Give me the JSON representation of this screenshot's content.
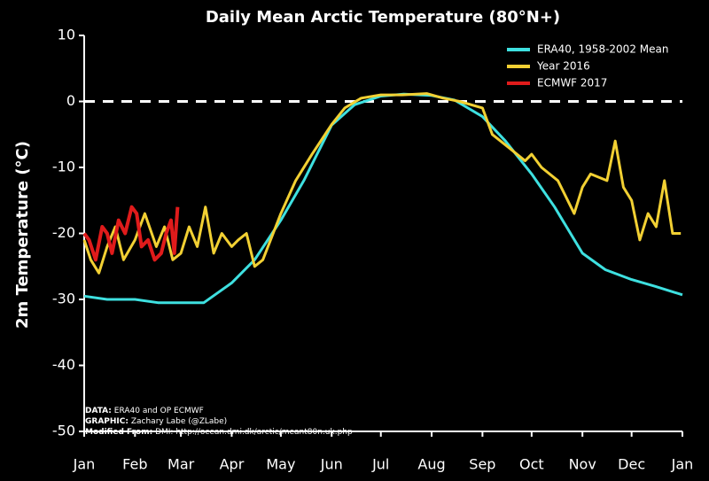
{
  "chart_data": {
    "type": "line",
    "title": "Daily Mean Arctic Temperature (80°N+)",
    "y_label": "2m Temperature (°C)",
    "xlim": [
      1,
      366
    ],
    "xticks": [
      {
        "value": 1,
        "label": "Jan"
      },
      {
        "value": 32,
        "label": "Feb"
      },
      {
        "value": 60,
        "label": "Mar"
      },
      {
        "value": 91,
        "label": "Apr"
      },
      {
        "value": 121,
        "label": "May"
      },
      {
        "value": 152,
        "label": "Jun"
      },
      {
        "value": 182,
        "label": "Jul"
      },
      {
        "value": 213,
        "label": "Aug"
      },
      {
        "value": 244,
        "label": "Sep"
      },
      {
        "value": 274,
        "label": "Oct"
      },
      {
        "value": 305,
        "label": "Nov"
      },
      {
        "value": 335,
        "label": "Dec"
      },
      {
        "value": 366,
        "label": "Jan"
      }
    ],
    "ylim": [
      -50,
      10
    ],
    "yticks": [
      -50,
      -40,
      -30,
      -20,
      -10,
      0,
      10
    ],
    "reference_line": 0,
    "legend": "upper right",
    "series": [
      {
        "name": "ERA40, 1958-2002 Mean",
        "color": "#3ee0e0",
        "x": [
          1,
          15,
          32,
          46,
          60,
          74,
          91,
          105,
          121,
          135,
          152,
          166,
          182,
          196,
          213,
          227,
          244,
          258,
          274,
          288,
          305,
          319,
          335,
          349,
          366
        ],
        "values": [
          -29.5,
          -30,
          -30,
          -30.5,
          -30.5,
          -30.5,
          -27.5,
          -24,
          -18,
          -12,
          -3.6,
          -0.5,
          0.8,
          1.1,
          0.9,
          0.2,
          -2.3,
          -6,
          -11,
          -16,
          -23,
          -25.5,
          -27,
          -28,
          -29.3
        ]
      },
      {
        "name": "Year 2016",
        "color": "#f2d033",
        "x": [
          1,
          5,
          10,
          15,
          20,
          25,
          32,
          38,
          45,
          50,
          55,
          60,
          65,
          70,
          75,
          80,
          85,
          91,
          95,
          100,
          105,
          110,
          121,
          130,
          140,
          152,
          160,
          170,
          182,
          195,
          210,
          220,
          230,
          244,
          250,
          260,
          270,
          274,
          280,
          290,
          300,
          305,
          310,
          320,
          325,
          330,
          335,
          340,
          345,
          350,
          355,
          360,
          365
        ],
        "values": [
          -21,
          -24,
          -26,
          -22,
          -19,
          -24,
          -21,
          -17,
          -22,
          -19,
          -24,
          -23,
          -19,
          -22,
          -16,
          -23,
          -20,
          -22,
          -21,
          -20,
          -25,
          -24,
          -17,
          -12,
          -8,
          -3.5,
          -1,
          0.5,
          1,
          1,
          1.2,
          0.5,
          0,
          -1,
          -5,
          -7,
          -9,
          -8,
          -10,
          -12,
          -17,
          -13,
          -11,
          -12,
          -6,
          -13,
          -15,
          -21,
          -17,
          -19,
          -12,
          -20,
          -20
        ]
      },
      {
        "name": "ECMWF 2017",
        "color": "#e01b1b",
        "x": [
          1,
          4,
          8,
          12,
          15,
          18,
          22,
          26,
          30,
          33,
          36,
          40,
          44,
          48,
          51,
          54,
          56,
          58
        ],
        "values": [
          -20,
          -21,
          -24,
          -19,
          -20,
          -23,
          -18,
          -20,
          -16,
          -17,
          -22,
          -21,
          -24,
          -23,
          -20,
          -18,
          -23,
          -16
        ]
      }
    ],
    "notes": [
      {
        "label": "DATA:",
        "text": "ERA40 and OP ECMWF"
      },
      {
        "label": "GRAPHIC:",
        "text": "Zachary Labe (@ZLabe)"
      },
      {
        "label": "Modified From:",
        "text": "DMI: http://ocean.dmi.dk/arctic/meant80n.uk.php"
      }
    ]
  }
}
